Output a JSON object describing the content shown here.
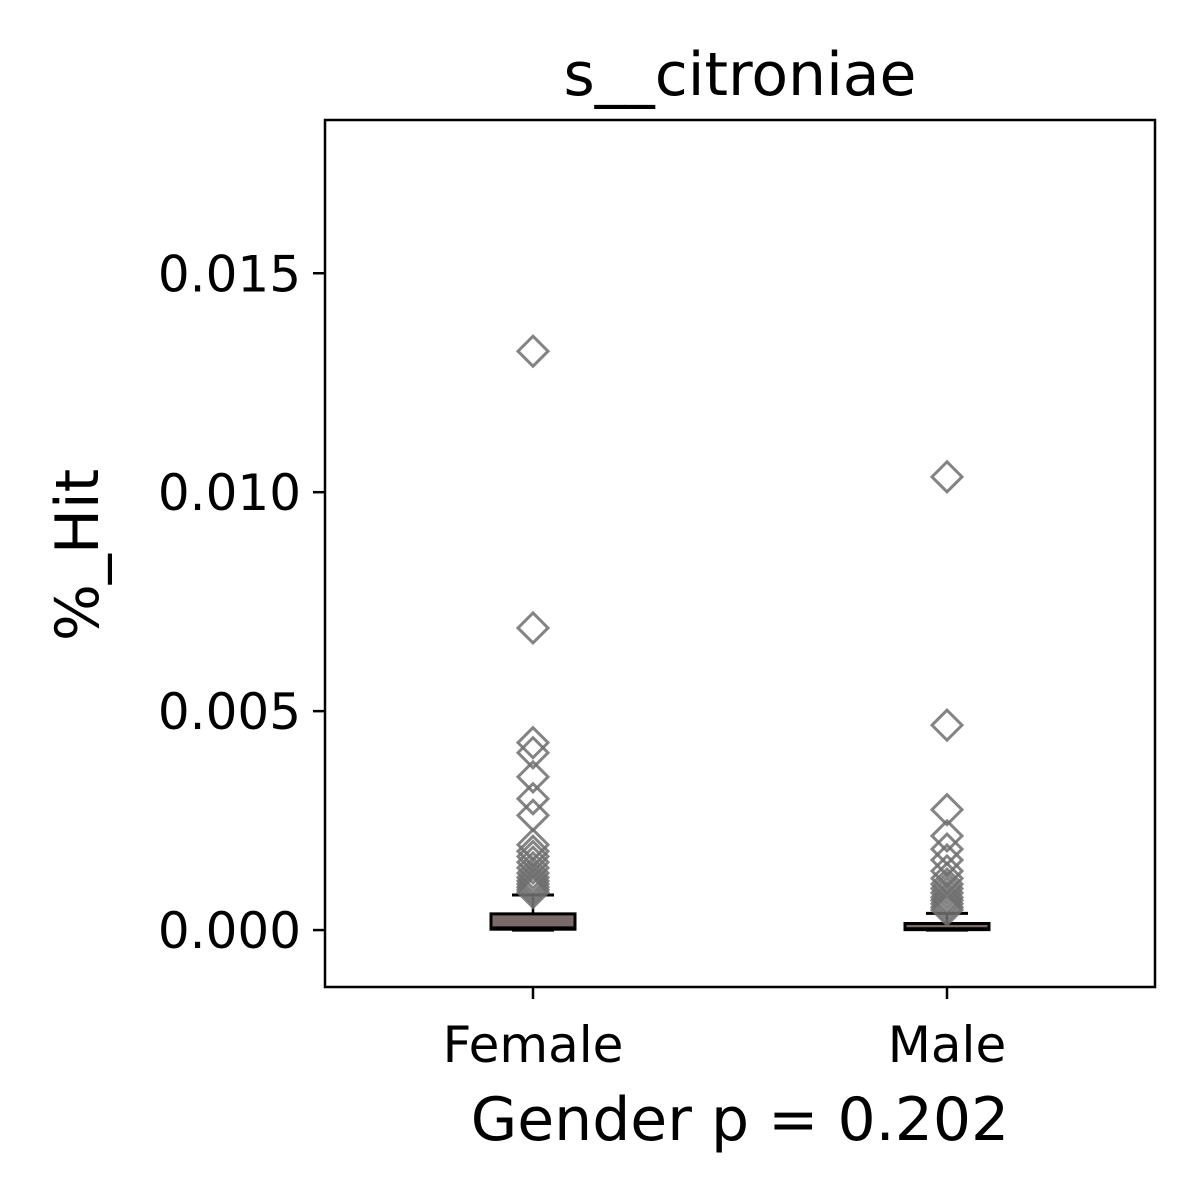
{
  "chart_data": {
    "type": "box",
    "title": "s__citroniae",
    "xlabel": "Gender p = 0.202",
    "ylabel": "%_Hit",
    "categories": [
      "Female",
      "Male"
    ],
    "ylim": [
      -0.0013,
      0.0185
    ],
    "yticks": [
      0.0,
      0.005,
      0.01,
      0.015
    ],
    "ytick_labels": [
      "0.000",
      "0.005",
      "0.010",
      "0.015"
    ],
    "grid": false,
    "box_color": "#7a6a6a",
    "outlier_color": "#6e6e6e",
    "boxes": [
      {
        "name": "Female",
        "whisker_low": 0.0,
        "q1": 2e-05,
        "median": 5e-05,
        "q3": 0.00037,
        "whisker_high": 0.0008,
        "outliers": [
          0.01322,
          0.0069,
          0.00428,
          0.00405,
          0.0035,
          0.003,
          0.00262,
          0.00195,
          0.0018,
          0.00168,
          0.00155,
          0.00142,
          0.0013,
          0.0012,
          0.00112,
          0.00105,
          0.00098,
          0.00092,
          0.00086
        ]
      },
      {
        "name": "Male",
        "whisker_low": 0.0,
        "q1": 1e-05,
        "median": 3e-05,
        "q3": 0.00015,
        "whisker_high": 0.00038,
        "outliers": [
          0.01035,
          0.00468,
          0.00275,
          0.00215,
          0.00185,
          0.0016,
          0.00135,
          0.00118,
          0.00105,
          0.00095,
          0.00085,
          0.00075,
          0.00068,
          0.0006,
          0.00052,
          0.00046
        ]
      }
    ]
  }
}
